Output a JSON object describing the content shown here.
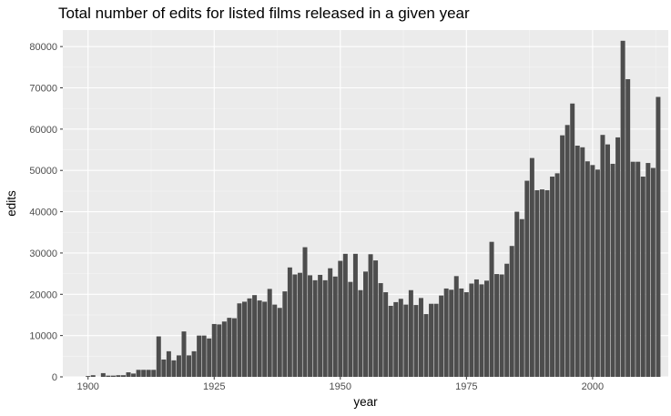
{
  "chart_data": {
    "type": "bar",
    "title": "Total number of edits for listed films released in a given year",
    "xlabel": "year",
    "ylabel": "edits",
    "xlim": [
      1895,
      2015
    ],
    "ylim": [
      0,
      84000
    ],
    "x_ticks": [
      1900,
      1925,
      1950,
      1975,
      2000
    ],
    "y_ticks": [
      0,
      10000,
      20000,
      30000,
      40000,
      50000,
      60000,
      70000,
      80000
    ],
    "grid": true,
    "legend": "none",
    "bar_color": "#4d4d4d",
    "panel_color": "#ebebeb",
    "x": [
      1900,
      1901,
      1902,
      1903,
      1904,
      1905,
      1906,
      1907,
      1908,
      1909,
      1910,
      1911,
      1912,
      1913,
      1914,
      1915,
      1916,
      1917,
      1918,
      1919,
      1920,
      1921,
      1922,
      1923,
      1924,
      1925,
      1926,
      1927,
      1928,
      1929,
      1930,
      1931,
      1932,
      1933,
      1934,
      1935,
      1936,
      1937,
      1938,
      1939,
      1940,
      1941,
      1942,
      1943,
      1944,
      1945,
      1946,
      1947,
      1948,
      1949,
      1950,
      1951,
      1952,
      1953,
      1954,
      1955,
      1956,
      1957,
      1958,
      1959,
      1960,
      1961,
      1962,
      1963,
      1964,
      1965,
      1966,
      1967,
      1968,
      1969,
      1970,
      1971,
      1972,
      1973,
      1974,
      1975,
      1976,
      1977,
      1978,
      1979,
      1980,
      1981,
      1982,
      1983,
      1984,
      1985,
      1986,
      1987,
      1988,
      1989,
      1990,
      1991,
      1992,
      1993,
      1994,
      1995,
      1996,
      1997,
      1998,
      1999,
      2000,
      2001,
      2002,
      2003,
      2004,
      2005,
      2006,
      2007,
      2008,
      2009,
      2010,
      2011,
      2012,
      2013
    ],
    "values": [
      200,
      400,
      0,
      900,
      300,
      300,
      400,
      400,
      1100,
      800,
      1700,
      1700,
      1700,
      1700,
      9800,
      4200,
      6200,
      4000,
      5200,
      11000,
      5200,
      6200,
      10000,
      10000,
      9300,
      12800,
      12700,
      13400,
      14300,
      14200,
      17800,
      18200,
      19000,
      19800,
      18500,
      18200,
      21300,
      17500,
      16700,
      20700,
      26500,
      24800,
      25200,
      31400,
      24600,
      23400,
      24700,
      23400,
      26300,
      24300,
      28100,
      29800,
      23000,
      29800,
      21000,
      25500,
      29700,
      28200,
      22700,
      20500,
      17200,
      18100,
      18900,
      17500,
      21000,
      17400,
      19100,
      15200,
      17700,
      17700,
      19700,
      21400,
      21100,
      24400,
      21400,
      20500,
      22600,
      23600,
      22400,
      23300,
      32700,
      24900,
      24800,
      27400,
      31700,
      40000,
      38200,
      47500,
      53000,
      45200,
      45400,
      45200,
      48500,
      49300,
      58500,
      61000,
      66200,
      56000,
      55600,
      52200,
      51300,
      50200,
      58600,
      56300,
      51600,
      58000,
      81400,
      72100,
      52100,
      52100,
      48500,
      51800,
      50600,
      67800
    ]
  }
}
